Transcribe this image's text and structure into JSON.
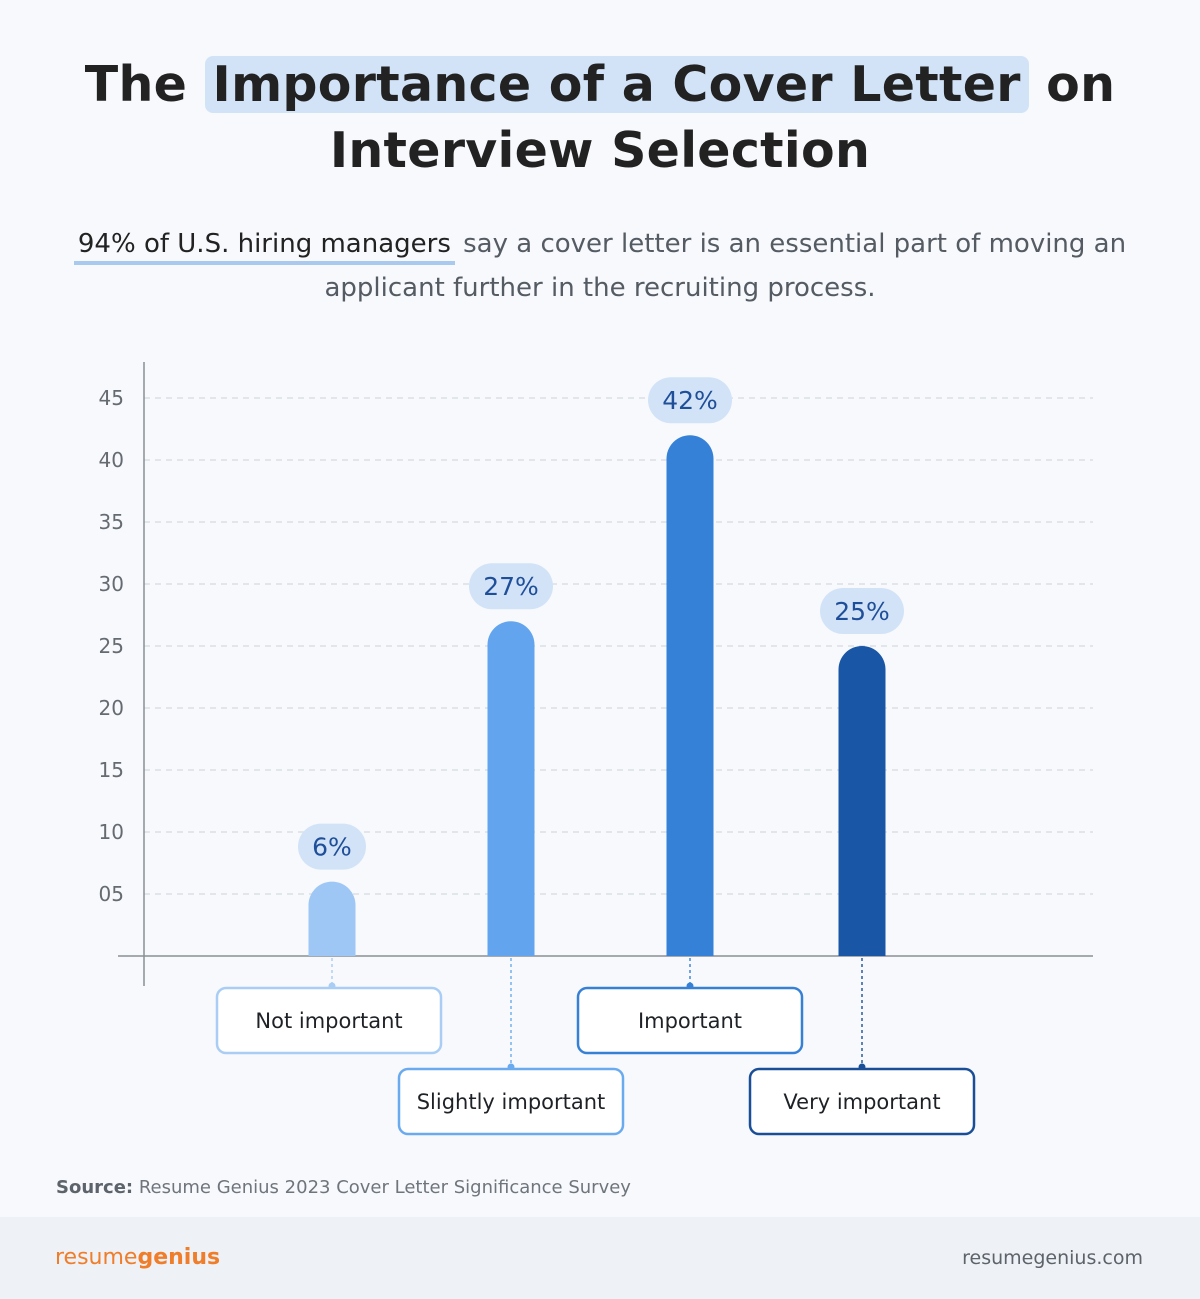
{
  "header": {
    "title_pre": "The ",
    "title_highlight": "Importance of a Cover Letter",
    "title_post": " on",
    "title_line2": "Interview Selection",
    "subtitle_lead": "94% of U.S. hiring managers",
    "subtitle_rest": " say a cover letter is an essential part of moving an applicant further in the recruiting process."
  },
  "chart_data": {
    "type": "bar",
    "categories": [
      "Not important",
      "Slightly important",
      "Important",
      "Very important"
    ],
    "values": [
      6,
      27,
      42,
      25
    ],
    "value_labels": [
      "6%",
      "27%",
      "42%",
      "25%"
    ],
    "ylim": [
      0,
      45
    ],
    "y_ticks": [
      "05",
      "10",
      "15",
      "20",
      "25",
      "30",
      "35",
      "40",
      "45"
    ],
    "grid": true,
    "colors": [
      "#9ec7f5",
      "#62a5ee",
      "#3581d8",
      "#1a56a6"
    ],
    "label_border_colors": [
      "#a9cdf4",
      "#6aaaef",
      "#3680d6",
      "#1a4f98"
    ]
  },
  "source": {
    "label": "Source:",
    "text": " Resume Genius 2023 Cover Letter Significance Survey"
  },
  "footer": {
    "brand_light": "resume",
    "brand_bold": "genius",
    "site": "resumegenius.com"
  }
}
